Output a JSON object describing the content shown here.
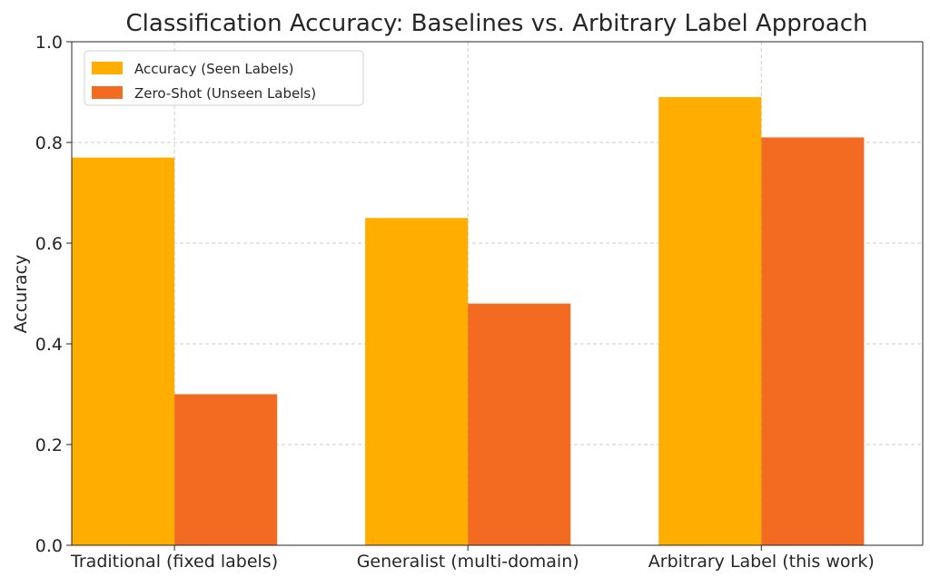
{
  "chart_data": {
    "type": "bar",
    "title": "Classification Accuracy: Baselines vs. Arbitrary Label Approach",
    "xlabel": "",
    "ylabel": "Accuracy",
    "ylim": [
      0,
      1.0
    ],
    "yticks": [
      "0.0",
      "0.2",
      "0.4",
      "0.6",
      "0.8",
      "1.0"
    ],
    "categories": [
      "Traditional (fixed labels)",
      "Generalist (multi-domain)",
      "Arbitrary Label (this work)"
    ],
    "series": [
      {
        "name": "Accuracy (Seen Labels)",
        "values": [
          0.77,
          0.65,
          0.89
        ],
        "color": "#FFAE00"
      },
      {
        "name": "Zero-Shot (Unseen Labels)",
        "values": [
          0.3,
          0.48,
          0.81
        ],
        "color": "#F26B21"
      }
    ],
    "grid": true,
    "legend_position": "top-left"
  }
}
